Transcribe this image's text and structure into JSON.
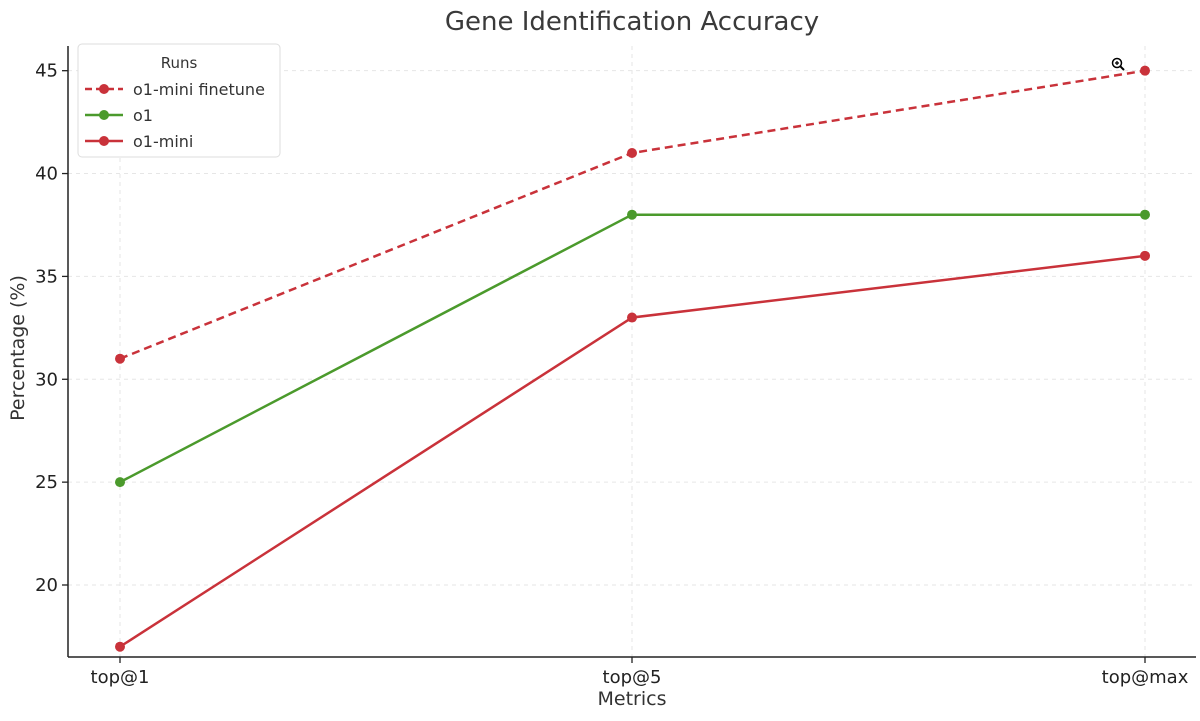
{
  "chart_data": {
    "type": "line",
    "title": "Gene Identification Accuracy",
    "xlabel": "Metrics",
    "ylabel": "Percentage (%)",
    "categories": [
      "top@1",
      "top@5",
      "top@max"
    ],
    "yticks": [
      20,
      25,
      30,
      35,
      40,
      45
    ],
    "ylim": [
      16.5,
      46.2
    ],
    "grid": true,
    "legend": {
      "title": "Runs",
      "placement": "top-left"
    },
    "series": [
      {
        "name": "o1-mini finetune",
        "values": [
          31,
          41,
          45
        ],
        "color": "#c9323a",
        "dashed": true
      },
      {
        "name": "o1",
        "values": [
          25,
          38,
          38
        ],
        "color": "#4b9a2c",
        "dashed": false
      },
      {
        "name": "o1-mini",
        "values": [
          17,
          33,
          36
        ],
        "color": "#c9323a",
        "dashed": false
      }
    ],
    "icons": {
      "cursor": "zoom-in-cursor-icon"
    }
  }
}
